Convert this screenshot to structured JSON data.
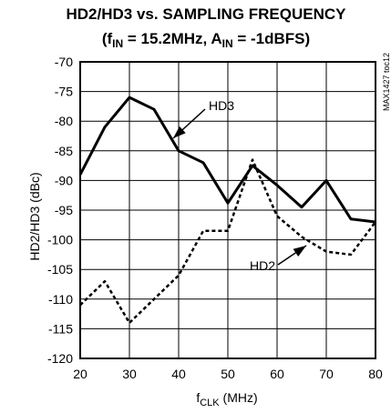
{
  "chart_data": {
    "type": "line",
    "title_line1": "HD2/HD3 vs. SAMPLING FREQUENCY",
    "title_line2": {
      "open": "(f",
      "fsub": "IN",
      "mid": " = 15.2MHz, A",
      "asub": "IN",
      "close": " = -1dBFS)"
    },
    "xlabel": {
      "main": "f",
      "sub": "CLK",
      "unit": " (MHz)"
    },
    "ylabel": "HD2/HD3 (dBc)",
    "part_code": "MAX1427 toc12",
    "xlim": [
      20,
      80
    ],
    "ylim": [
      -120,
      -70
    ],
    "x_ticks": [
      "20",
      "30",
      "40",
      "50",
      "60",
      "70",
      "80"
    ],
    "y_ticks": [
      "-70",
      "-75",
      "-80",
      "-85",
      "-90",
      "-95",
      "-100",
      "-105",
      "-110",
      "-115",
      "-120"
    ],
    "grid": true,
    "series": [
      {
        "name": "HD3",
        "style": "solid",
        "x": [
          20,
          25,
          30,
          35,
          40,
          45,
          50,
          55,
          60,
          65,
          70,
          75,
          80
        ],
        "values": [
          -89,
          -81,
          -76,
          -78,
          -85,
          -87,
          -93.8,
          -87.5,
          -90.8,
          -94.5,
          -90,
          -96.5,
          -97
        ]
      },
      {
        "name": "HD2",
        "style": "dashed",
        "x": [
          20,
          25,
          30,
          35,
          40,
          45,
          50,
          55,
          60,
          65,
          70,
          75,
          80
        ],
        "values": [
          -111,
          -107,
          -114,
          -110,
          -106,
          -98.5,
          -98.5,
          -86.5,
          -96,
          -99.5,
          -102,
          -102.5,
          -97
        ]
      }
    ],
    "annotations": [
      {
        "text": "HD3",
        "series": "HD3"
      },
      {
        "text": "HD2",
        "series": "HD2"
      }
    ]
  }
}
